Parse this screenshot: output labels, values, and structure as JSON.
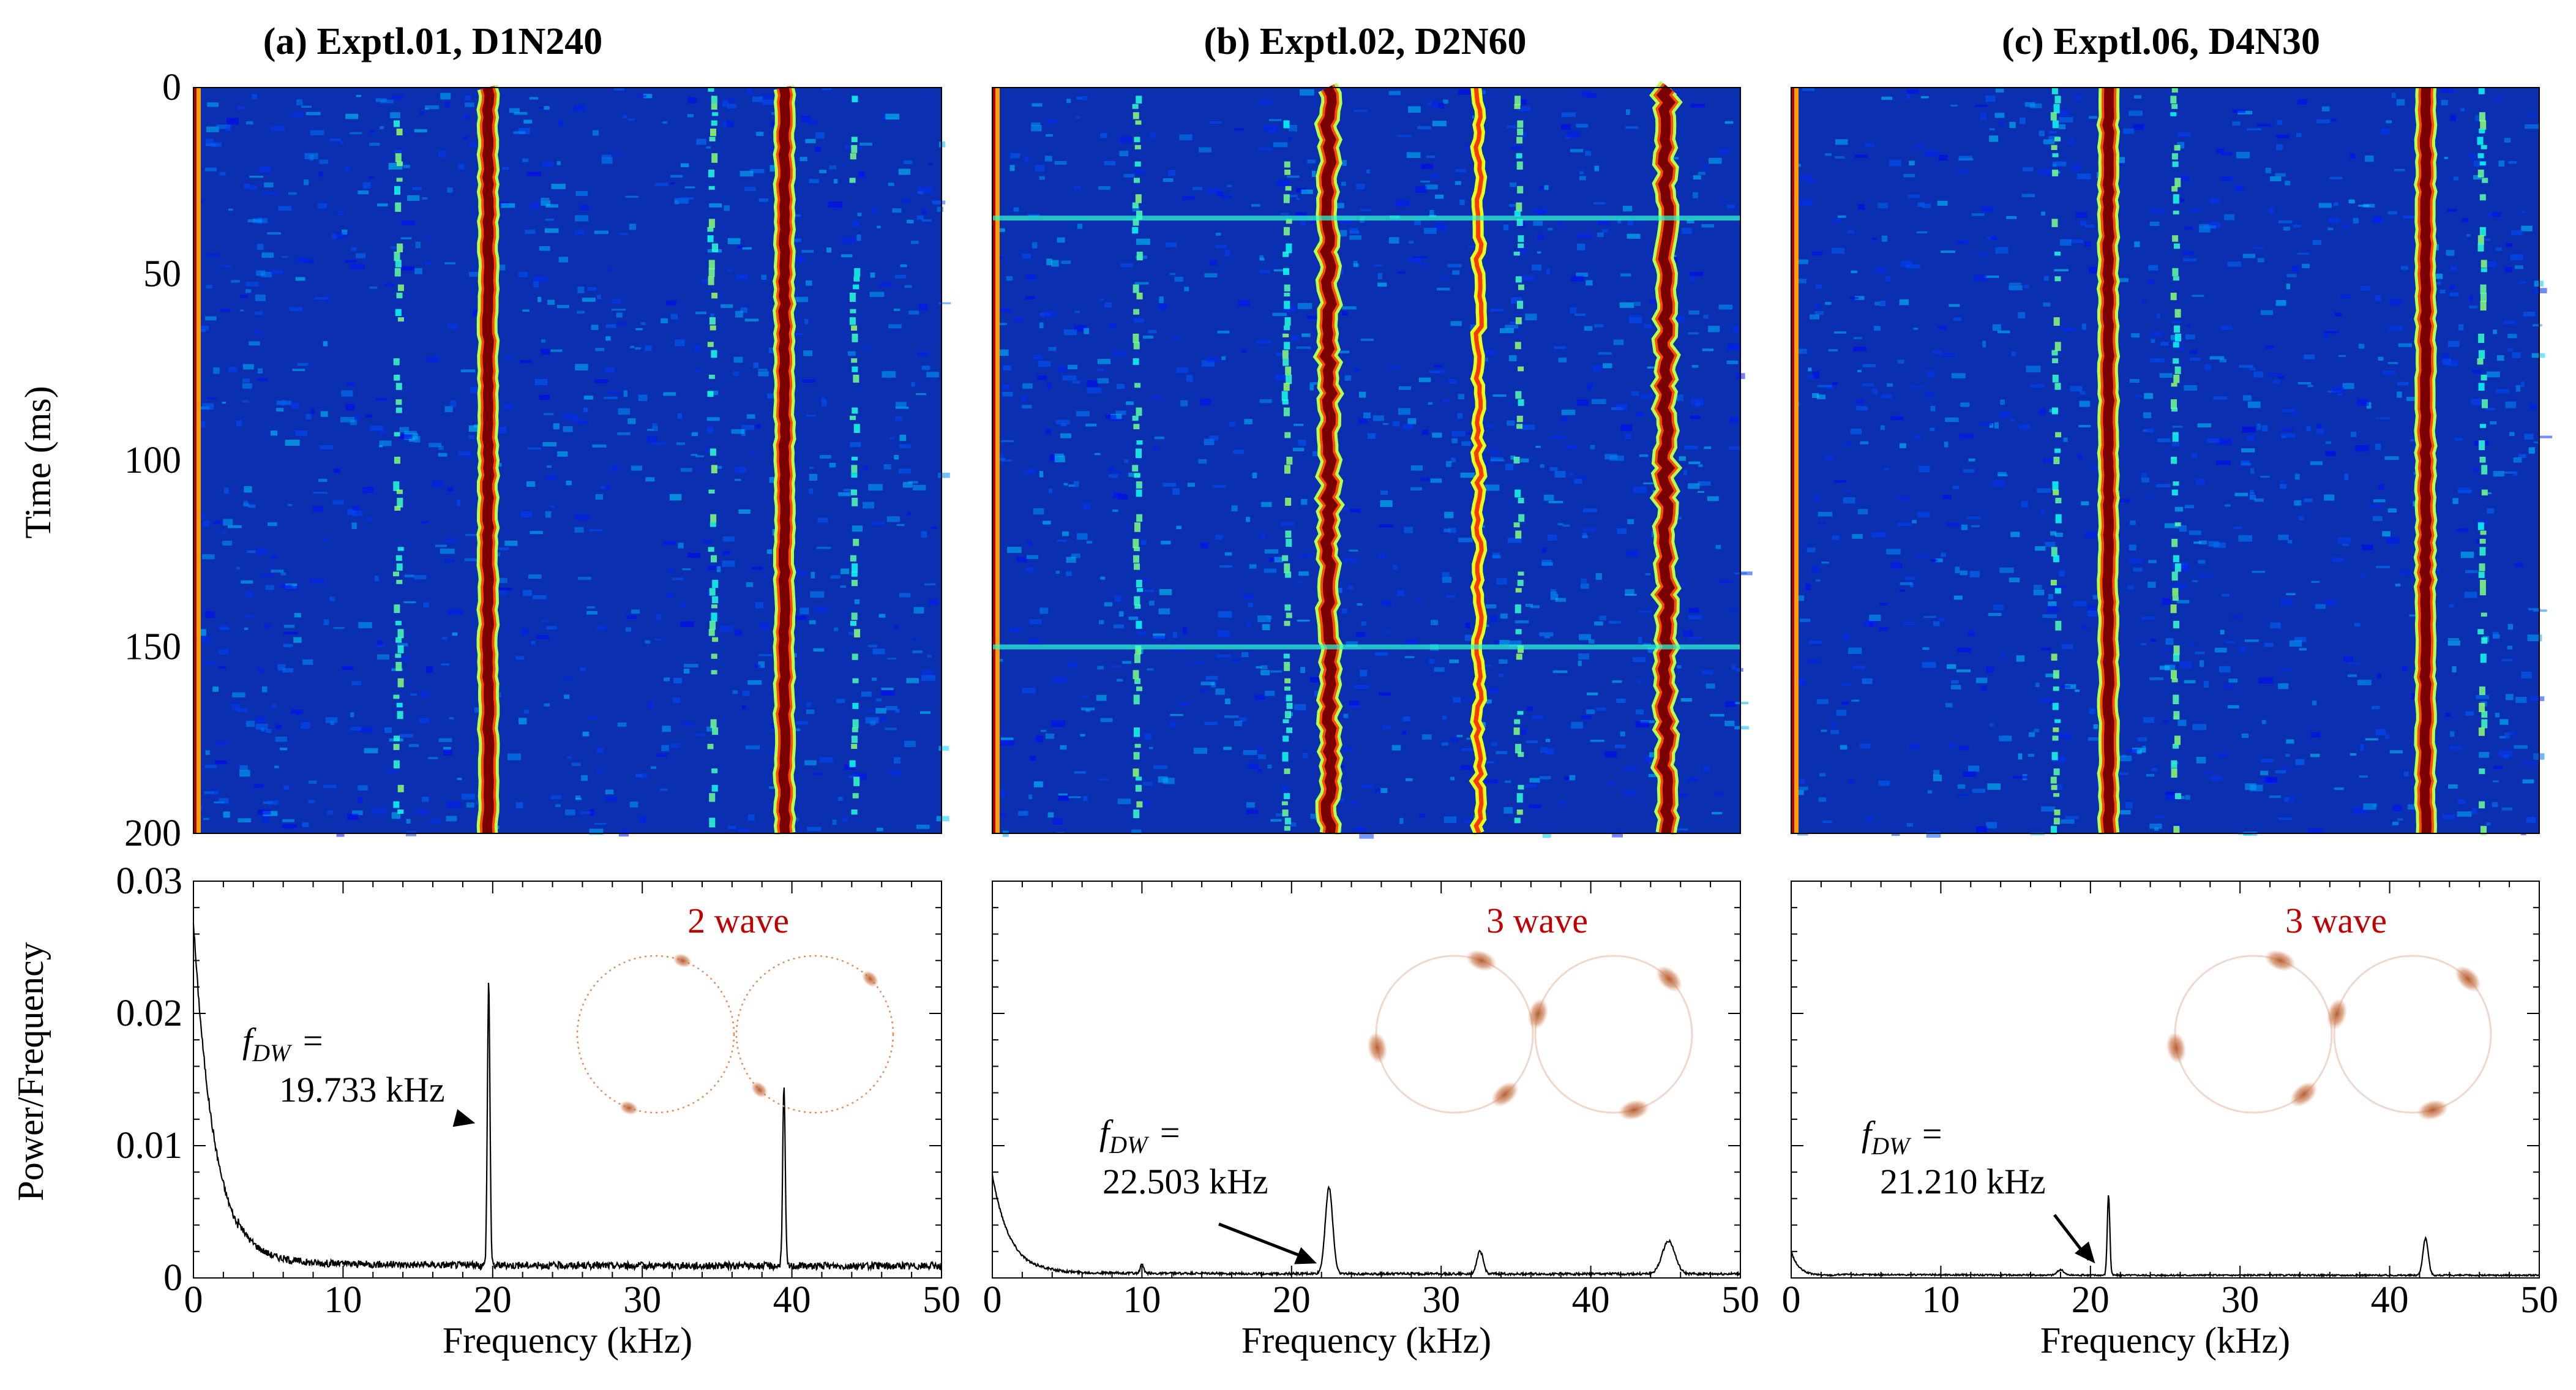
{
  "figure": {
    "ylabel_spectrogram": "Time (ms)",
    "ylabel_spectrum": "Power/Frequency",
    "xlabel": "Frequency (kHz)"
  },
  "chart_data": [
    {
      "panel": "a",
      "title": "(a) Exptl.01, D1N240",
      "type": "heatmap",
      "xlabel": "",
      "ylabel": "Time (ms)",
      "xlim": [
        0,
        50
      ],
      "ylim": [
        0,
        200
      ],
      "ytick_labels": [
        "0",
        "50",
        "100",
        "150",
        "200"
      ],
      "colormap": "jet",
      "background_color": "#0a2fb0",
      "ridges_khz": [
        19.7,
        39.5
      ],
      "faint_lines_khz": [
        13.5,
        34.5,
        44.0
      ]
    },
    {
      "panel": "b",
      "title": "(b) Exptl.02, D2N60",
      "type": "heatmap",
      "xlabel": "",
      "ylabel": "",
      "xlim": [
        0,
        50
      ],
      "ylim": [
        0,
        200
      ],
      "colormap": "jet",
      "background_color": "#0a2fb0",
      "ridges_khz": [
        22.5,
        45.0
      ],
      "ridges_medium_khz": [
        32.5
      ],
      "faint_lines_khz": [
        9.5,
        19.5,
        35.0
      ],
      "events_ms": [
        35,
        150
      ]
    },
    {
      "panel": "c",
      "title": "(c) Exptl.06, D4N30",
      "type": "heatmap",
      "xlabel": "",
      "ylabel": "",
      "xlim": [
        0,
        50
      ],
      "ylim": [
        0,
        200
      ],
      "colormap": "jet",
      "background_color": "#0a2fb0",
      "ridges_khz": [
        21.2,
        42.4
      ],
      "faint_lines_khz": [
        17.5,
        25.5,
        46.0
      ]
    },
    {
      "panel": "a",
      "type": "line",
      "xlabel": "Frequency (kHz)",
      "ylabel": "Power/Frequency",
      "xlim": [
        0,
        50
      ],
      "ylim": [
        0,
        0.03
      ],
      "xtick_labels": [
        "0",
        "10",
        "20",
        "30",
        "40",
        "50"
      ],
      "ytick_labels": [
        "0",
        "0.01",
        "0.02",
        "0.03"
      ],
      "baseline_decay": {
        "a0": 0.026,
        "tau_khz": 1.4,
        "floor": 0.0009
      },
      "peaks": [
        {
          "x": 19.733,
          "y": 0.0215,
          "width_khz": 0.12
        },
        {
          "x": 39.47,
          "y": 0.0135,
          "width_khz": 0.12
        }
      ],
      "annotation": {
        "symbol": "f",
        "subscript": "DW",
        "eq": "=",
        "value": "19.733 kHz",
        "arrow_to_x": 19.733
      },
      "wave_label": "2 wave",
      "wave_lobes": 2,
      "wave_dotted": true
    },
    {
      "panel": "b",
      "type": "line",
      "xlabel": "Frequency (kHz)",
      "ylabel": "",
      "xlim": [
        0,
        50
      ],
      "ylim": [
        0,
        0.03
      ],
      "xtick_labels": [
        "0",
        "10",
        "20",
        "30",
        "40",
        "50"
      ],
      "baseline_decay": {
        "a0": 0.0075,
        "tau_khz": 1.2,
        "floor": 0.0003
      },
      "peaks": [
        {
          "x": 10.0,
          "y": 0.0007,
          "width_khz": 0.15
        },
        {
          "x": 22.503,
          "y": 0.0065,
          "width_khz": 0.35
        },
        {
          "x": 32.6,
          "y": 0.0017,
          "width_khz": 0.3
        },
        {
          "x": 45.2,
          "y": 0.0025,
          "width_khz": 0.6
        }
      ],
      "annotation": {
        "symbol": "f",
        "subscript": "DW",
        "eq": "=",
        "value": "22.503 kHz",
        "arrow_to_x": 22.1
      },
      "wave_label": "3 wave",
      "wave_lobes": 3,
      "wave_dotted": false
    },
    {
      "panel": "c",
      "type": "line",
      "xlabel": "Frequency (kHz)",
      "ylabel": "",
      "xlim": [
        0,
        50
      ],
      "ylim": [
        0,
        0.03
      ],
      "xtick_labels": [
        "0",
        "10",
        "20",
        "30",
        "40",
        "50"
      ],
      "baseline_decay": {
        "a0": 0.0018,
        "tau_khz": 0.5,
        "floor": 0.0002
      },
      "peaks": [
        {
          "x": 18.0,
          "y": 0.0004,
          "width_khz": 0.3
        },
        {
          "x": 21.21,
          "y": 0.0061,
          "width_khz": 0.12
        },
        {
          "x": 42.4,
          "y": 0.0028,
          "width_khz": 0.25
        }
      ],
      "annotation": {
        "symbol": "f",
        "subscript": "DW",
        "eq": "=",
        "value": "21.210 kHz",
        "arrow_to_x": 20.8
      },
      "wave_label": "3 wave",
      "wave_lobes": 3,
      "wave_dotted": false
    }
  ]
}
